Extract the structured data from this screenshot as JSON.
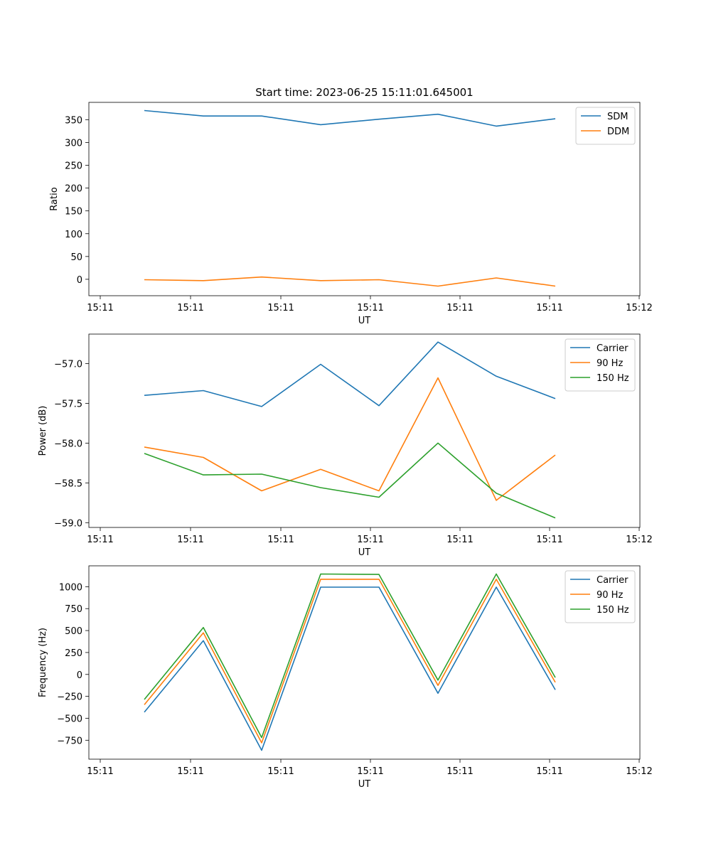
{
  "chart_data": [
    {
      "type": "line",
      "title": "Start time: 2023-06-25 15:11:01.645001",
      "xlabel": "UT",
      "ylabel": "Ratio",
      "x_tick_labels": [
        "15:11",
        "15:11",
        "15:11",
        "15:11",
        "15:11",
        "15:11",
        "15:11",
        "15:12"
      ],
      "ylim": [
        -36,
        388
      ],
      "y_ticks": [
        0,
        50,
        100,
        150,
        200,
        250,
        300,
        350
      ],
      "legend": "top-right",
      "series": [
        {
          "name": "SDM",
          "color": "#1f77b4",
          "values": [
            370,
            358,
            358,
            339,
            351,
            362,
            336,
            352
          ]
        },
        {
          "name": "DDM",
          "color": "#ff7f0e",
          "values": [
            -1,
            -3,
            5,
            -3,
            -1,
            -15,
            3,
            -15
          ]
        }
      ]
    },
    {
      "type": "line",
      "title": "",
      "xlabel": "UT",
      "ylabel": "Power (dB)",
      "x_tick_labels": [
        "15:11",
        "15:11",
        "15:11",
        "15:11",
        "15:11",
        "15:11",
        "15:11",
        "15:12"
      ],
      "ylim": [
        -59.06,
        -56.63
      ],
      "y_ticks": [
        -59.0,
        -58.5,
        -58.0,
        -57.5,
        -57.0
      ],
      "legend": "top-right",
      "series": [
        {
          "name": "Carrier",
          "color": "#1f77b4",
          "values": [
            -57.4,
            -57.34,
            -57.54,
            -57.01,
            -57.53,
            -56.73,
            -57.16,
            -57.44
          ]
        },
        {
          "name": "90 Hz",
          "color": "#ff7f0e",
          "values": [
            -58.05,
            -58.18,
            -58.6,
            -58.33,
            -58.6,
            -57.18,
            -58.72,
            -58.15
          ]
        },
        {
          "name": "150 Hz",
          "color": "#2ca02c",
          "values": [
            -58.13,
            -58.4,
            -58.39,
            -58.56,
            -58.68,
            -58.0,
            -58.63,
            -58.94
          ]
        }
      ]
    },
    {
      "type": "line",
      "title": "",
      "xlabel": "UT",
      "ylabel": "Frequency (Hz)",
      "x_tick_labels": [
        "15:11",
        "15:11",
        "15:11",
        "15:11",
        "15:11",
        "15:11",
        "15:11",
        "15:12"
      ],
      "ylim": [
        -966,
        1238
      ],
      "y_ticks": [
        -750,
        -500,
        -250,
        0,
        250,
        500,
        750,
        1000
      ],
      "legend": "top-right",
      "series": [
        {
          "name": "Carrier",
          "color": "#1f77b4",
          "values": [
            -430,
            385,
            -865,
            995,
            995,
            -215,
            995,
            -175
          ]
        },
        {
          "name": "90 Hz",
          "color": "#ff7f0e",
          "values": [
            -345,
            475,
            -780,
            1085,
            1085,
            -125,
            1085,
            -90
          ]
        },
        {
          "name": "150 Hz",
          "color": "#2ca02c",
          "values": [
            -285,
            535,
            -720,
            1145,
            1140,
            -65,
            1145,
            -35
          ]
        }
      ]
    }
  ]
}
